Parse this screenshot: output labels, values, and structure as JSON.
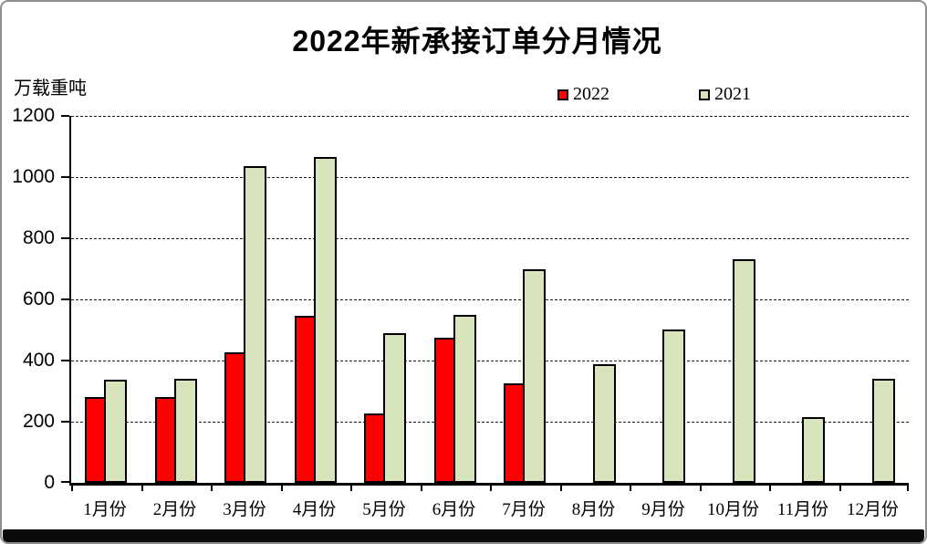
{
  "chart_data": {
    "type": "bar",
    "title": "2022年新承接订单分月情况",
    "ylabel": "万载重吨",
    "categories": [
      "1月份",
      "2月份",
      "3月份",
      "4月份",
      "5月份",
      "6月份",
      "7月份",
      "8月份",
      "9月份",
      "10月份",
      "11月份",
      "12月份"
    ],
    "series": [
      {
        "name": "2022",
        "color": "#fe0000",
        "values": [
          282,
          282,
          426,
          546,
          228,
          474,
          326,
          null,
          null,
          null,
          null,
          null
        ]
      },
      {
        "name": "2021",
        "color": "#d8e4bc",
        "values": [
          338,
          341,
          1036,
          1067,
          489,
          549,
          698,
          389,
          501,
          731,
          215,
          341
        ]
      }
    ],
    "ylim": [
      0,
      1200
    ],
    "ytick_interval": 200,
    "yticks": [
      0,
      200,
      400,
      600,
      800,
      1000,
      1200
    ],
    "grid": "horizontal-dashed",
    "legend_position": "top",
    "bar_border_color": "#000000"
  }
}
